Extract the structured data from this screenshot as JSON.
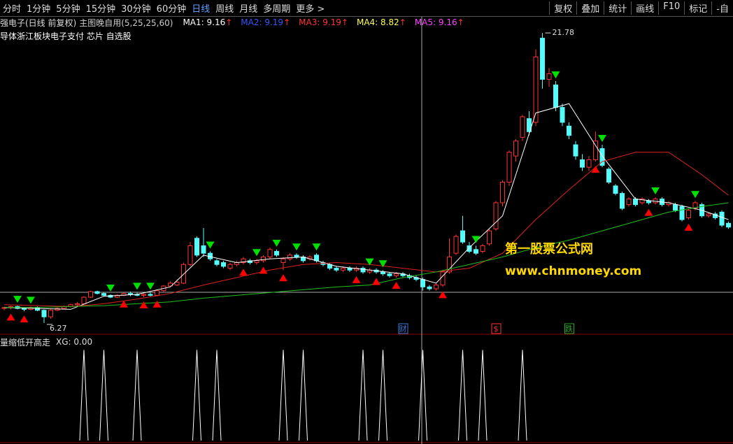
{
  "toolbar": {
    "left": [
      "分时",
      "1分钟",
      "5分钟",
      "15分钟",
      "30分钟",
      "60分钟",
      "日线",
      "周线",
      "月线",
      "多周期",
      "更多 >"
    ],
    "active": 6,
    "right": [
      "复权",
      "叠加",
      "统计",
      "画线",
      "F10",
      "标记",
      "-自"
    ]
  },
  "info": {
    "stock": "强电子(日线 前复权)",
    "indicator": "主图晚自用(5,25,25,60)",
    "ma": [
      {
        "label": "MA1: 9.16",
        "arrow": "↑",
        "color": "#ffffff"
      },
      {
        "label": "MA2: 9.19",
        "arrow": "↑",
        "color": "#3355ff"
      },
      {
        "label": "MA3: 9.19",
        "arrow": "↑",
        "color": "#ff3333"
      },
      {
        "label": "MA4: 8.82",
        "arrow": "↑",
        "color": "#ffff55"
      },
      {
        "label": "MA5: 9.16",
        "arrow": "↑",
        "color": "#ff44ff"
      }
    ]
  },
  "sector": "导体浙江板块电子支付 芯片 自选股",
  "watermark": {
    "name": "第一股票公式网",
    "url": "www.chnmoney.com"
  },
  "chart_data": [
    {
      "type": "candlestick",
      "xlim": [
        -0.63,
        109.68
      ],
      "ylim": [
        5.67,
        22.42
      ],
      "up_color": "#ff3232",
      "down_color": "#54fcfc",
      "ohlc": [
        [
          7.05,
          7.15,
          6.95,
          7.1
        ],
        [
          7.1,
          7.2,
          7.0,
          7.15
        ],
        [
          7.15,
          7.2,
          7.0,
          7.05
        ],
        [
          7.05,
          7.1,
          6.9,
          7.0
        ],
        [
          7.0,
          7.15,
          6.95,
          7.1
        ],
        [
          7.1,
          7.15,
          6.9,
          6.95
        ],
        [
          6.95,
          7.0,
          6.27,
          6.6
        ],
        [
          6.6,
          7.0,
          6.5,
          6.95
        ],
        [
          6.95,
          7.1,
          6.9,
          7.05
        ],
        [
          7.05,
          7.2,
          7.0,
          7.15
        ],
        [
          7.15,
          7.3,
          7.1,
          7.25
        ],
        [
          7.25,
          7.4,
          7.2,
          7.3
        ],
        [
          7.3,
          7.7,
          7.25,
          7.65
        ],
        [
          7.65,
          8.0,
          7.6,
          7.95
        ],
        [
          7.95,
          8.0,
          7.8,
          7.85
        ],
        [
          7.85,
          7.9,
          7.7,
          7.75
        ],
        [
          7.75,
          7.8,
          7.6,
          7.65
        ],
        [
          7.65,
          7.8,
          7.6,
          7.75
        ],
        [
          7.75,
          7.9,
          7.7,
          7.85
        ],
        [
          7.85,
          7.95,
          7.7,
          7.8
        ],
        [
          7.8,
          7.9,
          7.7,
          7.75
        ],
        [
          7.75,
          7.85,
          7.65,
          7.8
        ],
        [
          7.8,
          7.9,
          7.7,
          7.75
        ],
        [
          7.75,
          8.05,
          7.7,
          8.0
        ],
        [
          8.0,
          8.3,
          7.95,
          8.25
        ],
        [
          8.25,
          8.5,
          8.2,
          8.4
        ],
        [
          8.3,
          8.6,
          8.25,
          8.45
        ],
        [
          8.4,
          9.5,
          8.35,
          9.4
        ],
        [
          9.4,
          10.6,
          9.3,
          10.4
        ],
        [
          10.8,
          10.9,
          9.8,
          9.9
        ],
        [
          10.4,
          11.35,
          9.8,
          10.0
        ],
        [
          10.0,
          10.1,
          9.6,
          9.7
        ],
        [
          9.6,
          9.7,
          9.3,
          9.4
        ],
        [
          9.5,
          9.6,
          9.2,
          9.3
        ],
        [
          9.2,
          9.5,
          9.1,
          9.4
        ],
        [
          9.4,
          9.6,
          9.3,
          9.5
        ],
        [
          9.5,
          9.8,
          9.4,
          9.7
        ],
        [
          9.6,
          9.7,
          9.4,
          9.5
        ],
        [
          9.5,
          9.7,
          9.4,
          9.6
        ],
        [
          9.6,
          9.9,
          9.5,
          9.8
        ],
        [
          9.8,
          10.3,
          9.7,
          10.2
        ],
        [
          10.1,
          10.2,
          9.8,
          9.9
        ],
        [
          9.5,
          9.8,
          9.1,
          9.7
        ],
        [
          9.7,
          10.0,
          9.6,
          9.9
        ],
        [
          9.9,
          10.0,
          9.7,
          9.8
        ],
        [
          9.8,
          9.9,
          9.5,
          9.6
        ],
        [
          9.7,
          9.9,
          9.6,
          9.8
        ],
        [
          9.9,
          10.0,
          9.5,
          9.6
        ],
        [
          9.5,
          9.6,
          9.3,
          9.4
        ],
        [
          9.4,
          9.5,
          9.1,
          9.2
        ],
        [
          9.2,
          9.3,
          9.0,
          9.1
        ],
        [
          9.1,
          9.3,
          9.0,
          9.2
        ],
        [
          9.2,
          9.3,
          9.0,
          9.1
        ],
        [
          9.1,
          9.3,
          9.0,
          9.2
        ],
        [
          9.2,
          9.3,
          8.9,
          9.0
        ],
        [
          9.0,
          9.2,
          8.9,
          9.1
        ],
        [
          9.1,
          9.2,
          8.9,
          9.0
        ],
        [
          9.0,
          9.1,
          8.8,
          8.9
        ],
        [
          8.9,
          9.0,
          8.7,
          8.8
        ],
        [
          8.8,
          9.0,
          8.7,
          8.9
        ],
        [
          8.9,
          9.0,
          8.7,
          8.8
        ],
        [
          8.8,
          8.9,
          8.6,
          8.7
        ],
        [
          8.7,
          8.8,
          8.5,
          8.6
        ],
        [
          8.6,
          8.7,
          8.0,
          8.2
        ],
        [
          8.2,
          8.3,
          8.0,
          8.1
        ],
        [
          8.1,
          8.4,
          8.0,
          8.3
        ],
        [
          8.3,
          9.1,
          8.2,
          9.0
        ],
        [
          9.0,
          10.8,
          8.9,
          9.8
        ],
        [
          10.0,
          11.0,
          9.9,
          10.9
        ],
        [
          11.2,
          12.0,
          10.5,
          10.6
        ],
        [
          10.4,
          10.6,
          10.0,
          10.1
        ],
        [
          10.2,
          10.4,
          9.9,
          10.0
        ],
        [
          10.1,
          10.5,
          10.0,
          10.4
        ],
        [
          10.5,
          11.3,
          10.4,
          11.2
        ],
        [
          11.3,
          12.8,
          11.2,
          12.7
        ],
        [
          12.7,
          13.9,
          12.5,
          13.8
        ],
        [
          13.8,
          15.5,
          13.6,
          15.4
        ],
        [
          15.2,
          16.1,
          14.9,
          16.0
        ],
        [
          16.2,
          17.4,
          16.0,
          17.3
        ],
        [
          17.2,
          17.6,
          16.3,
          16.5
        ],
        [
          17.0,
          20.9,
          16.8,
          20.5
        ],
        [
          21.5,
          21.78,
          18.8,
          19.3
        ],
        [
          19.3,
          19.9,
          18.9,
          19.6
        ],
        [
          19.0,
          19.2,
          17.6,
          17.8
        ],
        [
          17.8,
          18.0,
          16.8,
          17.0
        ],
        [
          16.8,
          17.0,
          16.1,
          16.3
        ],
        [
          15.8,
          16.0,
          15.0,
          15.2
        ],
        [
          15.0,
          15.3,
          14.4,
          14.6
        ],
        [
          14.6,
          15.2,
          14.4,
          15.0
        ],
        [
          15.0,
          16.5,
          14.9,
          16.0
        ],
        [
          15.6,
          15.8,
          14.6,
          14.7
        ],
        [
          14.5,
          14.6,
          13.7,
          13.8
        ],
        [
          13.6,
          13.7,
          13.1,
          13.2
        ],
        [
          13.2,
          13.3,
          12.3,
          12.4
        ],
        [
          12.6,
          13.0,
          12.5,
          12.9
        ],
        [
          12.9,
          13.0,
          12.5,
          12.6
        ],
        [
          12.7,
          13.0,
          12.6,
          12.9
        ],
        [
          12.8,
          12.9,
          12.6,
          12.7
        ],
        [
          12.7,
          13.0,
          12.6,
          12.9
        ],
        [
          12.9,
          13.0,
          12.5,
          12.6
        ],
        [
          12.6,
          12.8,
          12.5,
          12.7
        ],
        [
          12.6,
          12.7,
          12.2,
          12.3
        ],
        [
          12.5,
          12.6,
          11.7,
          11.8
        ],
        [
          11.9,
          12.4,
          11.8,
          12.3
        ],
        [
          12.4,
          12.8,
          12.3,
          12.7
        ],
        [
          12.6,
          12.7,
          11.9,
          12.0
        ],
        [
          12.0,
          12.2,
          11.9,
          12.1
        ],
        [
          12.1,
          12.2,
          11.8,
          11.9
        ],
        [
          12.2,
          12.3,
          11.4,
          11.5
        ],
        [
          11.6,
          11.7,
          11.3,
          11.4
        ]
      ],
      "lines": [
        {
          "color": "#ffffff",
          "x": [
            0,
            5,
            10,
            15,
            20,
            25,
            30,
            35,
            40,
            45,
            50,
            55,
            60,
            65,
            70,
            75,
            80,
            85,
            90,
            95,
            100,
            105,
            109
          ],
          "values": [
            7.1,
            7.05,
            7.0,
            7.7,
            7.8,
            8.2,
            9.9,
            9.5,
            9.7,
            9.8,
            9.3,
            9.1,
            8.9,
            8.4,
            10.3,
            12.0,
            17.5,
            18.0,
            15.2,
            12.9,
            12.7,
            12.3,
            11.8
          ]
        },
        {
          "color": "#e02020",
          "x": [
            0,
            5,
            10,
            15,
            20,
            25,
            30,
            35,
            40,
            45,
            50,
            55,
            60,
            65,
            70,
            75,
            80,
            85,
            90,
            95,
            100,
            105,
            109
          ],
          "values": [
            7.25,
            7.2,
            7.15,
            7.3,
            7.55,
            7.85,
            8.3,
            8.7,
            9.1,
            9.4,
            9.5,
            9.4,
            9.2,
            9.0,
            9.2,
            10.0,
            11.8,
            13.4,
            14.9,
            15.4,
            15.4,
            14.2,
            13.1
          ]
        },
        {
          "color": "#20c020",
          "x": [
            0,
            5,
            10,
            15,
            20,
            25,
            30,
            35,
            40,
            45,
            50,
            55,
            60,
            65,
            70,
            75,
            80,
            85,
            90,
            95,
            100,
            105,
            109
          ],
          "values": [
            7.1,
            7.1,
            7.15,
            7.2,
            7.3,
            7.4,
            7.6,
            7.75,
            7.9,
            8.05,
            8.2,
            8.3,
            8.7,
            9.0,
            9.4,
            9.8,
            10.3,
            10.7,
            11.2,
            11.7,
            12.2,
            12.5,
            12.7
          ]
        }
      ],
      "buy_x": [
        1,
        3,
        18,
        21,
        23,
        36,
        39,
        42,
        53,
        56,
        59,
        66,
        89,
        97,
        103
      ],
      "buy_color": "#ff0000",
      "sell_x": [
        2,
        4,
        16,
        20,
        22,
        31,
        38,
        41,
        44,
        47,
        55,
        57,
        71,
        83,
        90,
        98,
        104
      ],
      "sell_color": "#00e000",
      "high_label": 21.78,
      "low_label": 6.27,
      "events": [
        {
          "label": "财",
          "x": 60,
          "color": "#3c78d8"
        },
        {
          "label": "$",
          "x": 74,
          "color": "#ff3333"
        },
        {
          "label": "跌",
          "x": 85,
          "color": "#22aa22"
        }
      ]
    },
    {
      "type": "signal",
      "title": "量缩低开高走",
      "label": "XG: 0.00",
      "xlim": [
        -0.63,
        109.68
      ],
      "ylim": [
        0,
        1.08
      ],
      "color": "#ffffff",
      "x": [
        12,
        15,
        20,
        29,
        32,
        42,
        45,
        54,
        57,
        63,
        69,
        72,
        78
      ],
      "values": [
        1,
        1,
        1,
        1,
        1,
        1,
        1,
        1,
        1,
        1,
        1,
        1,
        1
      ]
    }
  ]
}
